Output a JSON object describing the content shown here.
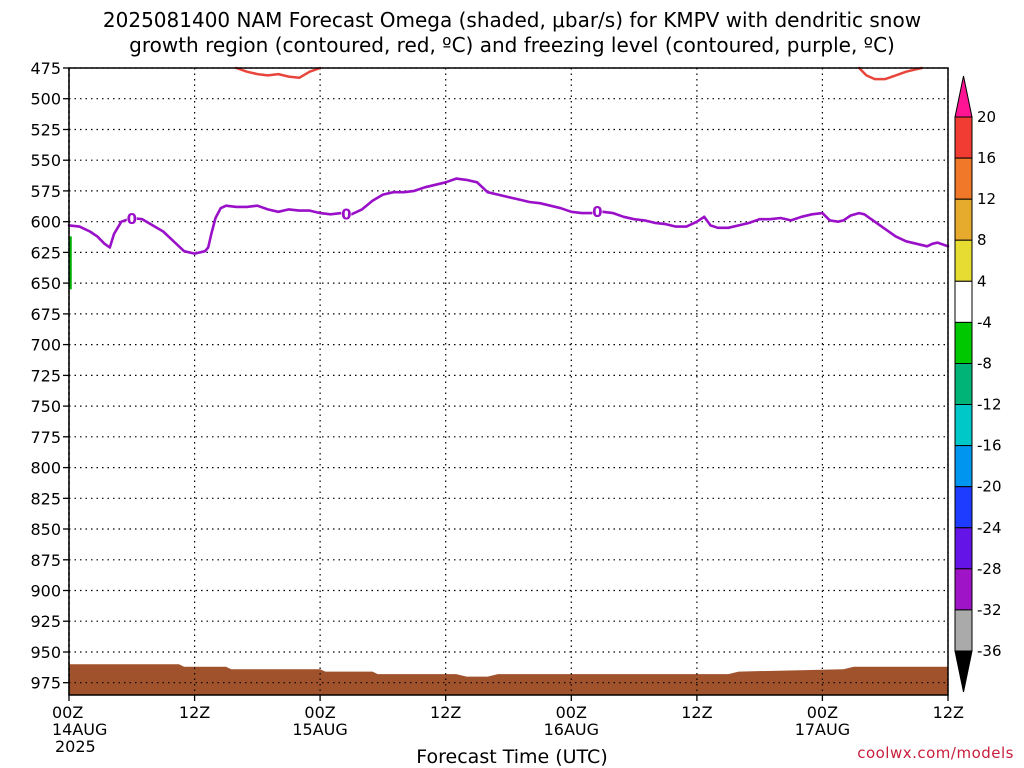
{
  "title": {
    "line1": "2025081400 NAM Forecast Omega (shaded, μbar/s) for KMPV with dendritic snow",
    "line2": "growth region (contoured, red, ºC) and freezing level (contoured, purple, ºC)"
  },
  "source_credit": "coolwx.com/models",
  "colors": {
    "dgz_contour": "#e8463c",
    "freezing_contour": "#9a10c8",
    "terrain": "#a0522d",
    "omega_upward": "#00b000"
  },
  "chart_data": {
    "type": "line",
    "xlabel": "Forecast Time (UTC)",
    "ylabel": "",
    "x_unit": "forecast hour",
    "xlim": [
      0,
      84
    ],
    "ylim_hpa": [
      475,
      985
    ],
    "y_scale": "linear-pressure-inverted",
    "grid": true,
    "x_ticks": [
      {
        "hour": 0,
        "label": "00Z",
        "date": "14AUG",
        "year": "2025"
      },
      {
        "hour": 12,
        "label": "12Z",
        "date": "",
        "year": ""
      },
      {
        "hour": 24,
        "label": "00Z",
        "date": "15AUG",
        "year": ""
      },
      {
        "hour": 36,
        "label": "12Z",
        "date": "",
        "year": ""
      },
      {
        "hour": 48,
        "label": "00Z",
        "date": "16AUG",
        "year": ""
      },
      {
        "hour": 60,
        "label": "12Z",
        "date": "",
        "year": ""
      },
      {
        "hour": 72,
        "label": "00Z",
        "date": "17AUG",
        "year": ""
      },
      {
        "hour": 84,
        "label": "12Z",
        "date": "",
        "year": ""
      }
    ],
    "y_ticks": [
      475,
      500,
      525,
      550,
      575,
      600,
      625,
      650,
      675,
      700,
      725,
      750,
      775,
      800,
      825,
      850,
      875,
      900,
      925,
      950,
      975
    ],
    "series": [
      {
        "role": "freezing-level",
        "contour_labels": [
          {
            "hour": 6,
            "hpa": 598,
            "text": "0"
          },
          {
            "hour": 26.5,
            "hpa": 594,
            "text": "0"
          },
          {
            "hour": 50.5,
            "hpa": 592,
            "text": "0"
          }
        ],
        "points": [
          [
            0,
            603
          ],
          [
            1,
            604
          ],
          [
            2,
            608
          ],
          [
            2.7,
            612
          ],
          [
            3.4,
            618
          ],
          [
            3.9,
            621
          ],
          [
            4.3,
            610
          ],
          [
            5,
            600
          ],
          [
            6,
            597
          ],
          [
            7,
            598
          ],
          [
            8,
            603
          ],
          [
            9,
            608
          ],
          [
            10,
            616
          ],
          [
            11,
            624
          ],
          [
            12,
            626
          ],
          [
            13,
            624
          ],
          [
            13.3,
            621
          ],
          [
            13.6,
            610
          ],
          [
            14,
            597
          ],
          [
            14.5,
            589
          ],
          [
            15,
            587
          ],
          [
            16,
            588
          ],
          [
            17,
            588
          ],
          [
            18,
            587
          ],
          [
            19,
            590
          ],
          [
            20,
            592
          ],
          [
            21,
            590
          ],
          [
            22,
            591
          ],
          [
            23,
            591
          ],
          [
            24,
            593
          ],
          [
            25,
            594
          ],
          [
            26,
            593
          ],
          [
            27,
            594
          ],
          [
            28,
            590
          ],
          [
            29,
            583
          ],
          [
            30,
            578
          ],
          [
            31,
            576
          ],
          [
            32,
            576
          ],
          [
            33,
            575
          ],
          [
            34,
            572
          ],
          [
            35,
            570
          ],
          [
            36,
            568
          ],
          [
            37,
            565
          ],
          [
            38,
            566
          ],
          [
            39,
            568
          ],
          [
            40,
            576
          ],
          [
            41,
            578
          ],
          [
            42,
            580
          ],
          [
            43,
            582
          ],
          [
            44,
            584
          ],
          [
            45,
            585
          ],
          [
            46,
            587
          ],
          [
            47,
            589
          ],
          [
            48,
            592
          ],
          [
            49,
            593
          ],
          [
            50,
            593
          ],
          [
            51,
            592
          ],
          [
            52,
            593
          ],
          [
            53,
            596
          ],
          [
            54,
            598
          ],
          [
            55,
            599
          ],
          [
            56,
            601
          ],
          [
            57,
            602
          ],
          [
            58,
            604
          ],
          [
            59,
            604
          ],
          [
            60,
            600
          ],
          [
            60.7,
            596
          ],
          [
            61.3,
            603
          ],
          [
            62,
            605
          ],
          [
            63,
            605
          ],
          [
            64,
            603
          ],
          [
            65,
            601
          ],
          [
            66,
            598
          ],
          [
            67,
            598
          ],
          [
            68,
            597
          ],
          [
            69,
            599
          ],
          [
            70,
            596
          ],
          [
            71,
            594
          ],
          [
            72,
            593
          ],
          [
            72.7,
            599
          ],
          [
            73.5,
            600
          ],
          [
            74,
            599
          ],
          [
            74.7,
            595
          ],
          [
            75.5,
            593
          ],
          [
            76,
            594
          ],
          [
            77,
            600
          ],
          [
            78,
            606
          ],
          [
            79,
            612
          ],
          [
            80,
            616
          ],
          [
            81,
            618
          ],
          [
            82,
            620
          ],
          [
            82.5,
            618
          ],
          [
            83,
            617
          ],
          [
            84,
            620
          ]
        ]
      },
      {
        "role": "dgz-contour",
        "segments": [
          [
            [
              16,
              475
            ],
            [
              17,
              478
            ],
            [
              18,
              480
            ],
            [
              19,
              481
            ],
            [
              20,
              480
            ],
            [
              21,
              482
            ],
            [
              22,
              483
            ],
            [
              23,
              478
            ],
            [
              24,
              475
            ]
          ],
          [
            [
              75.5,
              475
            ],
            [
              76.2,
              481
            ],
            [
              77,
              484
            ],
            [
              78,
              484
            ],
            [
              79,
              481
            ],
            [
              80,
              478
            ],
            [
              81,
              476
            ],
            [
              81.5,
              475
            ]
          ]
        ]
      },
      {
        "role": "omega-shading",
        "segments": [
          [
            [
              0,
              612
            ],
            [
              0,
              655
            ]
          ]
        ]
      },
      {
        "role": "terrain",
        "points": [
          [
            0,
            960
          ],
          [
            10.5,
            960
          ],
          [
            11,
            962
          ],
          [
            15,
            962
          ],
          [
            15.5,
            964
          ],
          [
            24,
            964
          ],
          [
            24.5,
            966
          ],
          [
            29,
            966
          ],
          [
            29.5,
            968
          ],
          [
            37,
            968
          ],
          [
            38,
            970
          ],
          [
            40,
            970
          ],
          [
            41,
            968
          ],
          [
            63,
            968
          ],
          [
            64,
            966
          ],
          [
            74,
            964
          ],
          [
            75,
            962
          ],
          [
            84,
            962
          ]
        ]
      }
    ],
    "colorbar": {
      "unit": "μbar/s",
      "levels": [
        20,
        16,
        12,
        8,
        4,
        -4,
        -8,
        -12,
        -16,
        -20,
        -24,
        -28,
        -32,
        -36
      ],
      "colors": [
        "#ff1493",
        "#f03c32",
        "#f07828",
        "#e6aa2d",
        "#e6dc32",
        "#ffffff",
        "#00c800",
        "#00b478",
        "#00c8c8",
        "#0096f0",
        "#1e3cff",
        "#6414e6",
        "#a014c8",
        "#aaaaaa",
        "#000000"
      ]
    }
  }
}
